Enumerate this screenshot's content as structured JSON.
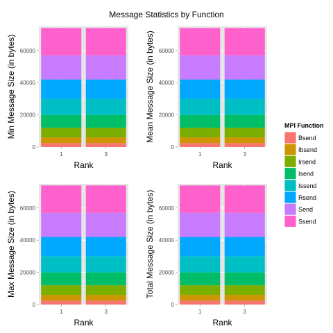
{
  "title": "Message Statistics by Function",
  "legend": {
    "title": "MPI Function",
    "items": [
      {
        "name": "Bsend",
        "color": "#F8766D"
      },
      {
        "name": "Ibsend",
        "color": "#CD9600"
      },
      {
        "name": "Irsend",
        "color": "#7CAE00"
      },
      {
        "name": "Isend",
        "color": "#00BE67"
      },
      {
        "name": "Issend",
        "color": "#00BFC4"
      },
      {
        "name": "Rsend",
        "color": "#00A9FF"
      },
      {
        "name": "Send",
        "color": "#C77CFF"
      },
      {
        "name": "Ssend",
        "color": "#FF61CC"
      }
    ]
  },
  "chart_data": [
    {
      "type": "bar",
      "stacked": true,
      "categories": [
        "1",
        "3"
      ],
      "xlabel": "Rank",
      "ylabel": "Min Message Size (in bytes)",
      "yticks": [
        0,
        20000,
        40000,
        60000
      ],
      "ylim": [
        0,
        75000
      ],
      "series": [
        {
          "name": "Bsend",
          "values": [
            2500,
            2500
          ]
        },
        {
          "name": "Ibsend",
          "values": [
            3500,
            3500
          ]
        },
        {
          "name": "Irsend",
          "values": [
            6000,
            6000
          ]
        },
        {
          "name": "Isend",
          "values": [
            8000,
            8000
          ]
        },
        {
          "name": "Issend",
          "values": [
            10000,
            10000
          ]
        },
        {
          "name": "Rsend",
          "values": [
            12000,
            12000
          ]
        },
        {
          "name": "Send",
          "values": [
            15000,
            15000
          ]
        },
        {
          "name": "Ssend",
          "values": [
            17000,
            17000
          ]
        }
      ]
    },
    {
      "type": "bar",
      "stacked": true,
      "categories": [
        "1",
        "3"
      ],
      "xlabel": "Rank",
      "ylabel": "Mean Message Size (in bytes)",
      "yticks": [
        0,
        20000,
        40000,
        60000
      ],
      "ylim": [
        0,
        75000
      ],
      "series": [
        {
          "name": "Bsend",
          "values": [
            2500,
            2500
          ]
        },
        {
          "name": "Ibsend",
          "values": [
            3500,
            3500
          ]
        },
        {
          "name": "Irsend",
          "values": [
            6000,
            6000
          ]
        },
        {
          "name": "Isend",
          "values": [
            8000,
            8000
          ]
        },
        {
          "name": "Issend",
          "values": [
            10000,
            10000
          ]
        },
        {
          "name": "Rsend",
          "values": [
            12000,
            12000
          ]
        },
        {
          "name": "Send",
          "values": [
            15000,
            15000
          ]
        },
        {
          "name": "Ssend",
          "values": [
            17000,
            17000
          ]
        }
      ]
    },
    {
      "type": "bar",
      "stacked": true,
      "categories": [
        "1",
        "3"
      ],
      "xlabel": "Rank",
      "ylabel": "Max Message Size (in bytes)",
      "yticks": [
        0,
        20000,
        40000,
        60000
      ],
      "ylim": [
        0,
        75000
      ],
      "series": [
        {
          "name": "Bsend",
          "values": [
            2500,
            2500
          ]
        },
        {
          "name": "Ibsend",
          "values": [
            3500,
            3500
          ]
        },
        {
          "name": "Irsend",
          "values": [
            6000,
            6000
          ]
        },
        {
          "name": "Isend",
          "values": [
            8000,
            8000
          ]
        },
        {
          "name": "Issend",
          "values": [
            10000,
            10000
          ]
        },
        {
          "name": "Rsend",
          "values": [
            12000,
            12000
          ]
        },
        {
          "name": "Send",
          "values": [
            15000,
            15000
          ]
        },
        {
          "name": "Ssend",
          "values": [
            17000,
            17000
          ]
        }
      ]
    },
    {
      "type": "bar",
      "stacked": true,
      "categories": [
        "1",
        "3"
      ],
      "xlabel": "Rank",
      "ylabel": "Total Message Size (in bytes)",
      "yticks": [
        0,
        20000,
        40000,
        60000
      ],
      "ylim": [
        0,
        75000
      ],
      "series": [
        {
          "name": "Bsend",
          "values": [
            2500,
            2500
          ]
        },
        {
          "name": "Ibsend",
          "values": [
            3500,
            3500
          ]
        },
        {
          "name": "Irsend",
          "values": [
            6000,
            6000
          ]
        },
        {
          "name": "Isend",
          "values": [
            8000,
            8000
          ]
        },
        {
          "name": "Issend",
          "values": [
            10000,
            10000
          ]
        },
        {
          "name": "Rsend",
          "values": [
            12000,
            12000
          ]
        },
        {
          "name": "Send",
          "values": [
            15000,
            15000
          ]
        },
        {
          "name": "Ssend",
          "values": [
            17000,
            17000
          ]
        }
      ]
    }
  ]
}
